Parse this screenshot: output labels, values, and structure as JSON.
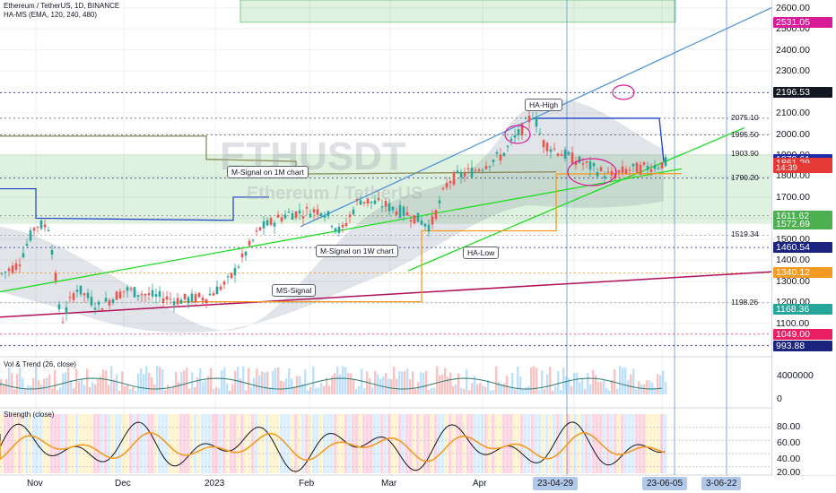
{
  "header": {
    "symbol_line": "Ethereum / TetherUS, 1D, BINANCE",
    "indicator_line": "HA-MS (EMA, 120, 240, 480)"
  },
  "watermark": {
    "ticker": "ETHUSDT",
    "name": "Ethereum / TetherUS"
  },
  "price_axis": {
    "ticks": [
      "2600.00",
      "2500.00",
      "2400.00",
      "2300.00",
      "2200.00",
      "2100.00",
      "2000.00",
      "1900.00",
      "1800.00",
      "1700.00",
      "1600.00",
      "1500.00",
      "1400.00",
      "1300.00",
      "1200.00",
      "1100.00",
      "1000.00"
    ],
    "ylim": [
      950,
      2620
    ]
  },
  "price_tags": [
    {
      "text": "2531.05",
      "value": 2531.05,
      "color": "#d81b96"
    },
    {
      "text": "2196.53",
      "value": 2196.53,
      "color": "#131722"
    },
    {
      "text": "1879.61",
      "value": 1879.61,
      "color": "#1e2aa8"
    },
    {
      "text": "1862.00",
      "value": 1862.0,
      "color": "#e53935"
    },
    {
      "text": "1861.29",
      "value": 1861.29,
      "color": "#e53935"
    },
    {
      "text": "14:39",
      "value": 1838,
      "color": "#e53935"
    },
    {
      "text": "1611.62",
      "value": 1611.62,
      "color": "#4caf50"
    },
    {
      "text": "1572.69",
      "value": 1572.69,
      "color": "#4caf50"
    },
    {
      "text": "1460.54",
      "value": 1460.54,
      "color": "#1a237e"
    },
    {
      "text": "1340.12",
      "value": 1340.12,
      "color": "#f59a23"
    },
    {
      "text": "1168.36",
      "value": 1168.36,
      "color": "#26a69a"
    },
    {
      "text": "1049.00",
      "value": 1049.0,
      "color": "#e91e63"
    },
    {
      "text": "993.88",
      "value": 993.88,
      "color": "#1a237e"
    }
  ],
  "levels": [
    {
      "text": "2075.10",
      "value": 2075.1
    },
    {
      "text": "1995.50",
      "value": 1995.5
    },
    {
      "text": "1903.90",
      "value": 1903.9
    },
    {
      "text": "1790.20",
      "value": 1790.2
    },
    {
      "text": "1519.34",
      "value": 1519.34
    },
    {
      "text": "1198.26",
      "value": 1198.26
    }
  ],
  "annotations": [
    {
      "text": "HA-High"
    },
    {
      "text": "M-Signal on 1M chart"
    },
    {
      "text": "M-Signal on 1W chart"
    },
    {
      "text": "HA-Low"
    },
    {
      "text": "MS-Signal"
    }
  ],
  "panes": {
    "volume": {
      "title": "Vol & Trend (26, close)",
      "tick": "4000000",
      "tick_zero": "0"
    },
    "strength": {
      "title": "Strength (close)",
      "ticks": [
        "80.00",
        "60.00",
        "40.00",
        "20.00"
      ]
    }
  },
  "time_axis": {
    "labels": [
      "Nov",
      "Dec",
      "2023",
      "Feb",
      "Mar",
      "Apr"
    ],
    "highlight_tags": [
      "23-04-29",
      "23-06-05",
      "3-06-22"
    ]
  },
  "colors": {
    "up": "#26a69a",
    "down": "#ef5350",
    "trendline_blue": "#4a90d9",
    "trendline_green": "#22dd22",
    "trendline_magenta": "#b0105a",
    "green_zone": "rgba(76,175,80,0.18)",
    "grey_cloud": "rgba(120,130,150,0.22)"
  }
}
